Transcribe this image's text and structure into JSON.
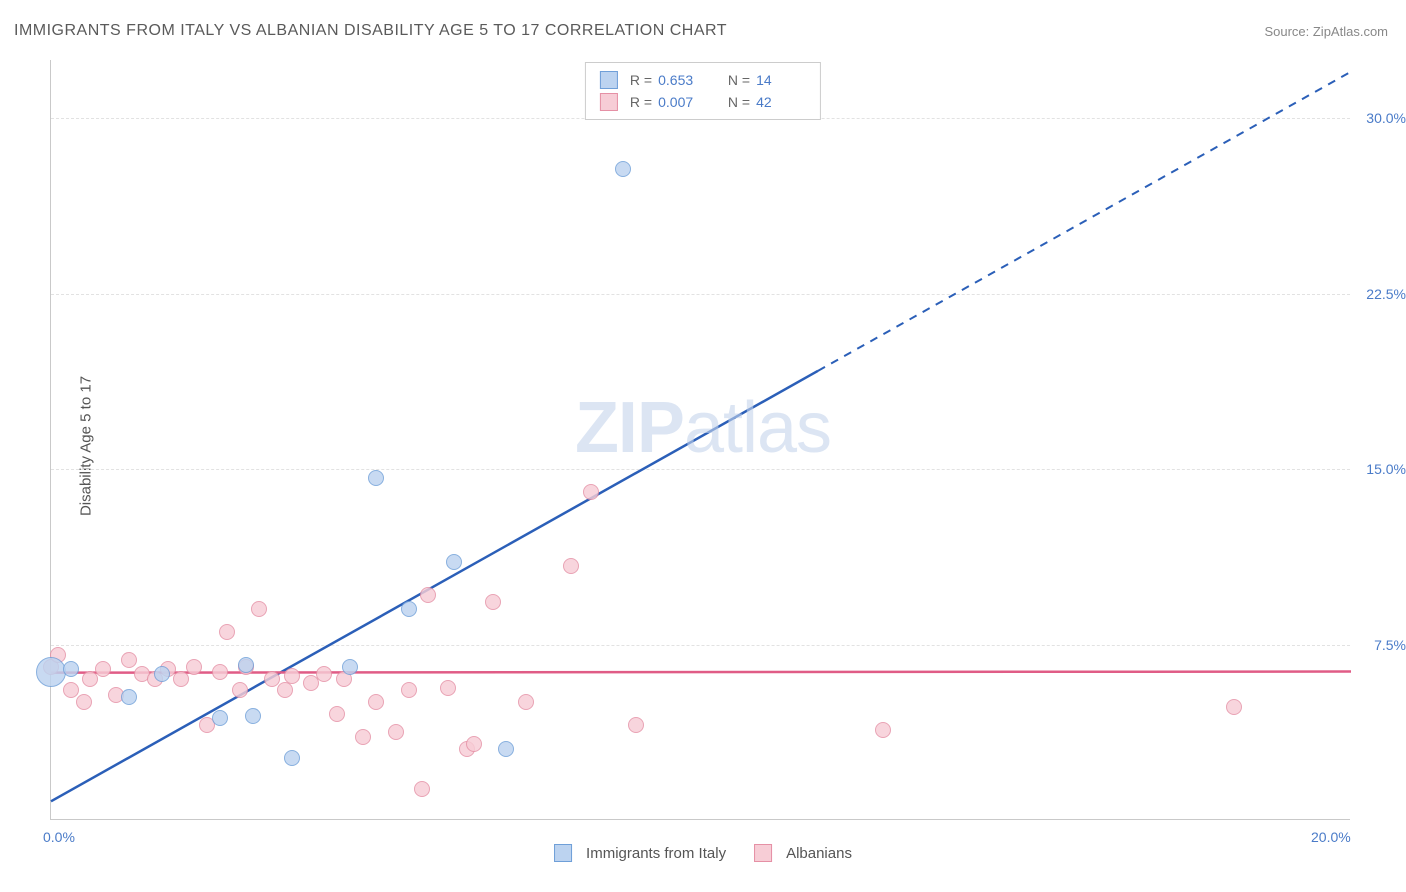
{
  "title": "IMMIGRANTS FROM ITALY VS ALBANIAN DISABILITY AGE 5 TO 17 CORRELATION CHART",
  "source_label": "Source: ZipAtlas.com",
  "ylabel": "Disability Age 5 to 17",
  "watermark_bold": "ZIP",
  "watermark_rest": "atlas",
  "chart": {
    "type": "scatter",
    "xlim": [
      0,
      20
    ],
    "ylim": [
      0,
      32.5
    ],
    "x_ticks": [
      {
        "v": 0,
        "label": "0.0%"
      },
      {
        "v": 20,
        "label": "20.0%"
      }
    ],
    "y_ticks": [
      {
        "v": 7.5,
        "label": "7.5%"
      },
      {
        "v": 15.0,
        "label": "15.0%"
      },
      {
        "v": 22.5,
        "label": "22.5%"
      },
      {
        "v": 30.0,
        "label": "30.0%"
      }
    ],
    "grid_color": "#e2e2e2",
    "axis_color": "#c9c9c9",
    "background_color": "#ffffff",
    "tick_label_color": "#4a7bc8",
    "tick_fontsize": 14,
    "series": [
      {
        "name": "Immigrants from Italy",
        "fill": "#bcd3f0",
        "stroke": "#6f9fd8",
        "line_color": "#2b5fb8",
        "marker_radius": 8,
        "R": "0.653",
        "N": "14",
        "regression": {
          "x1": 0,
          "y1": 0.8,
          "x2": 20,
          "y2": 32.0,
          "solid_until_x": 11.8
        },
        "points": [
          {
            "x": 0.0,
            "y": 6.3,
            "r": 15
          },
          {
            "x": 0.3,
            "y": 6.4
          },
          {
            "x": 1.2,
            "y": 5.2
          },
          {
            "x": 1.7,
            "y": 6.2
          },
          {
            "x": 2.6,
            "y": 4.3
          },
          {
            "x": 3.0,
            "y": 6.6
          },
          {
            "x": 3.1,
            "y": 4.4
          },
          {
            "x": 3.7,
            "y": 2.6
          },
          {
            "x": 4.6,
            "y": 6.5
          },
          {
            "x": 5.0,
            "y": 14.6
          },
          {
            "x": 5.5,
            "y": 9.0
          },
          {
            "x": 6.2,
            "y": 11.0
          },
          {
            "x": 7.0,
            "y": 3.0
          },
          {
            "x": 8.8,
            "y": 27.8
          }
        ]
      },
      {
        "name": "Albanians",
        "fill": "#f7cdd6",
        "stroke": "#e590a5",
        "line_color": "#e05c86",
        "marker_radius": 8,
        "R": "0.007",
        "N": "42",
        "regression": {
          "x1": 0,
          "y1": 6.3,
          "x2": 20,
          "y2": 6.35,
          "solid_until_x": 20
        },
        "points": [
          {
            "x": 0.0,
            "y": 6.5
          },
          {
            "x": 0.1,
            "y": 7.0
          },
          {
            "x": 0.3,
            "y": 5.5
          },
          {
            "x": 0.5,
            "y": 5.0
          },
          {
            "x": 0.6,
            "y": 6.0
          },
          {
            "x": 0.8,
            "y": 6.4
          },
          {
            "x": 1.0,
            "y": 5.3
          },
          {
            "x": 1.2,
            "y": 6.8
          },
          {
            "x": 1.4,
            "y": 6.2
          },
          {
            "x": 1.6,
            "y": 6.0
          },
          {
            "x": 1.8,
            "y": 6.4
          },
          {
            "x": 2.0,
            "y": 6.0
          },
          {
            "x": 2.2,
            "y": 6.5
          },
          {
            "x": 2.4,
            "y": 4.0
          },
          {
            "x": 2.6,
            "y": 6.3
          },
          {
            "x": 2.7,
            "y": 8.0
          },
          {
            "x": 2.9,
            "y": 5.5
          },
          {
            "x": 3.0,
            "y": 6.5
          },
          {
            "x": 3.2,
            "y": 9.0
          },
          {
            "x": 3.4,
            "y": 6.0
          },
          {
            "x": 3.6,
            "y": 5.5
          },
          {
            "x": 3.7,
            "y": 6.1
          },
          {
            "x": 4.0,
            "y": 5.8
          },
          {
            "x": 4.2,
            "y": 6.2
          },
          {
            "x": 4.4,
            "y": 4.5
          },
          {
            "x": 4.5,
            "y": 6.0
          },
          {
            "x": 4.8,
            "y": 3.5
          },
          {
            "x": 5.0,
            "y": 5.0
          },
          {
            "x": 5.3,
            "y": 3.7
          },
          {
            "x": 5.5,
            "y": 5.5
          },
          {
            "x": 5.7,
            "y": 1.3
          },
          {
            "x": 5.8,
            "y": 9.6
          },
          {
            "x": 6.1,
            "y": 5.6
          },
          {
            "x": 6.4,
            "y": 3.0
          },
          {
            "x": 6.5,
            "y": 3.2
          },
          {
            "x": 6.8,
            "y": 9.3
          },
          {
            "x": 7.3,
            "y": 5.0
          },
          {
            "x": 8.0,
            "y": 10.8
          },
          {
            "x": 8.3,
            "y": 14.0
          },
          {
            "x": 9.0,
            "y": 4.0
          },
          {
            "x": 12.8,
            "y": 3.8
          },
          {
            "x": 18.2,
            "y": 4.8
          }
        ]
      }
    ]
  },
  "legend_top": {
    "r_label": "R =",
    "n_label": "N ="
  },
  "legend_bottom": {
    "items": [
      "Immigrants from Italy",
      "Albanians"
    ]
  }
}
